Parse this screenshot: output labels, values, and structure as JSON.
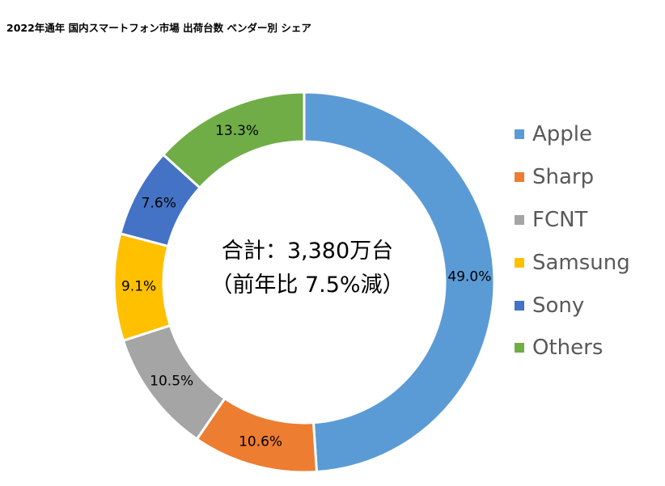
{
  "chart_data": {
    "type": "pie",
    "title": "2022年通年 国内スマートフォン市場 出荷台数 ベンダー別 シェア",
    "center_text": [
      "合計：3,380万台",
      "（前年比 7.5%減）"
    ],
    "unit": "%",
    "legend_position": "right",
    "slices": [
      {
        "name": "Apple",
        "value": 49.0,
        "label": "49.0%",
        "color": "#5B9BD5"
      },
      {
        "name": "Sharp",
        "value": 10.6,
        "label": "10.6%",
        "color": "#ED7D31"
      },
      {
        "name": "FCNT",
        "value": 10.5,
        "label": "10.5%",
        "color": "#A5A5A5"
      },
      {
        "name": "Samsung",
        "value": 9.1,
        "label": "9.1%",
        "color": "#FFC000"
      },
      {
        "name": "Sony",
        "value": 7.6,
        "label": "7.6%",
        "color": "#4472C4"
      },
      {
        "name": "Others",
        "value": 13.3,
        "label": "13.3%",
        "color": "#70AD47"
      }
    ]
  }
}
